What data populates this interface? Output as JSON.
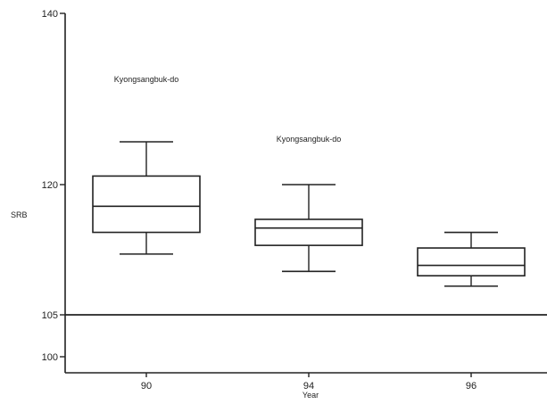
{
  "chart_data": {
    "type": "box",
    "xlabel": "Year",
    "ylabel": "SRB",
    "yticks": [
      100,
      105,
      120,
      140
    ],
    "categories": [
      "90",
      "94",
      "96"
    ],
    "boxes": [
      {
        "category": "90",
        "whisker_low": 112,
        "q1": 114.5,
        "median": 117.5,
        "q3": 121,
        "whisker_high": 125
      },
      {
        "category": "94",
        "whisker_low": 110,
        "q1": 113,
        "median": 115,
        "q3": 116,
        "whisker_high": 120
      },
      {
        "category": "96",
        "whisker_low": 108.3,
        "q1": 109.5,
        "median": 110.7,
        "q3": 112.7,
        "whisker_high": 114.5
      }
    ],
    "reference_line": 105,
    "annotations": [
      {
        "text": "Kyongsangbuk-do",
        "category": "90",
        "y": 132
      },
      {
        "text": "Kyongsangbuk-do",
        "category": "94",
        "y": 125
      }
    ],
    "grid": false,
    "legend": "none"
  },
  "colors": {
    "line": "#222222",
    "background": "#ffffff"
  }
}
